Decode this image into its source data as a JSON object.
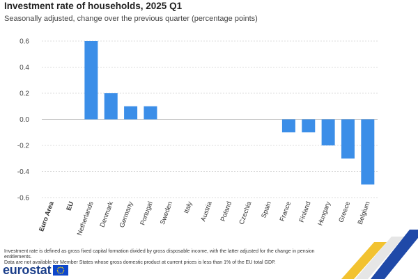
{
  "title": "Investment rate of households, 2025 Q1",
  "subtitle": "Seasonally adjusted, change over the previous quarter (percentage points)",
  "chart_data": {
    "type": "bar",
    "categories": [
      "Euro Area",
      "EU",
      "Netherlands",
      "Denmark",
      "Germany",
      "Portugal",
      "Sweden",
      "Italy",
      "Austria",
      "Poland",
      "Czechia",
      "Spain",
      "France",
      "Finland",
      "Hungary",
      "Greece",
      "Belgium"
    ],
    "bold_categories": [
      "Euro Area",
      "EU"
    ],
    "values": [
      null,
      null,
      0.6,
      0.2,
      0.1,
      0.1,
      0.0,
      0.0,
      0.0,
      0.0,
      0.0,
      0.0,
      -0.1,
      -0.1,
      -0.2,
      -0.3,
      -0.5
    ],
    "yticks": [
      "0.6",
      "0.4",
      "0.2",
      "0.0",
      "-0.2",
      "-0.4",
      "-0.6"
    ],
    "ylim": [
      -0.6,
      0.6
    ],
    "grid": true,
    "bar_color": "#3b8ee8"
  },
  "footnotes": [
    "Investment rate is defined as gross fixed capital formation divided by gross disposable income, with the latter adjusted for the change in pension entitlements.",
    "Data are not available for Member States whose gross domestic product at current prices is less than 1% of the EU total GDP."
  ],
  "logo": {
    "text": "eurostat"
  },
  "colors": {
    "brand": "#1a3e8a",
    "bar": "#3b8ee8",
    "flag": "#0e47cb",
    "flag_stars": "#ffdd00"
  }
}
